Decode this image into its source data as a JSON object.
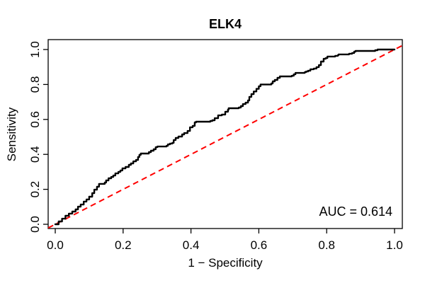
{
  "chart": {
    "title": "ELK4",
    "x_label": "1 − Specificity",
    "y_label": "Sensitivity",
    "auc_label": "AUC = 0.614",
    "x_ticks": [
      "0.0",
      "0.2",
      "0.4",
      "0.6",
      "0.8",
      "1.0"
    ],
    "y_ticks": [
      "0.0",
      "0.2",
      "0.4",
      "0.6",
      "0.8",
      "1.0"
    ]
  },
  "colors": {
    "curve": "#000000",
    "reference_line": "#FF0000",
    "axis": "#000000",
    "background": "#FFFFFF"
  },
  "chart_data": {
    "type": "line",
    "title": "ELK4",
    "xlabel": "1 − Specificity",
    "ylabel": "Sensitivity",
    "xlim": [
      0,
      1
    ],
    "ylim": [
      0,
      1
    ],
    "grid": false,
    "legend": "none",
    "annotations": [
      {
        "text": "AUC = 0.614",
        "position": "bottom-right",
        "value": 0.614
      }
    ],
    "series": [
      {
        "name": "ROC curve",
        "style": "step",
        "color": "#000000",
        "linewidth": 2,
        "points": [
          [
            0.0,
            0.0
          ],
          [
            0.01,
            0.016
          ],
          [
            0.02,
            0.032
          ],
          [
            0.03,
            0.049
          ],
          [
            0.04,
            0.061
          ],
          [
            0.05,
            0.073
          ],
          [
            0.06,
            0.085
          ],
          [
            0.067,
            0.101
          ],
          [
            0.075,
            0.113
          ],
          [
            0.084,
            0.13
          ],
          [
            0.092,
            0.142
          ],
          [
            0.1,
            0.158
          ],
          [
            0.109,
            0.178
          ],
          [
            0.115,
            0.198
          ],
          [
            0.123,
            0.215
          ],
          [
            0.129,
            0.231
          ],
          [
            0.146,
            0.239
          ],
          [
            0.15,
            0.251
          ],
          [
            0.157,
            0.263
          ],
          [
            0.165,
            0.271
          ],
          [
            0.171,
            0.279
          ],
          [
            0.177,
            0.291
          ],
          [
            0.186,
            0.3
          ],
          [
            0.192,
            0.308
          ],
          [
            0.198,
            0.32
          ],
          [
            0.207,
            0.328
          ],
          [
            0.217,
            0.34
          ],
          [
            0.223,
            0.348
          ],
          [
            0.23,
            0.36
          ],
          [
            0.238,
            0.368
          ],
          [
            0.244,
            0.385
          ],
          [
            0.248,
            0.397
          ],
          [
            0.252,
            0.405
          ],
          [
            0.276,
            0.413
          ],
          [
            0.282,
            0.421
          ],
          [
            0.29,
            0.429
          ],
          [
            0.296,
            0.441
          ],
          [
            0.301,
            0.445
          ],
          [
            0.328,
            0.449
          ],
          [
            0.332,
            0.457
          ],
          [
            0.338,
            0.462
          ],
          [
            0.345,
            0.466
          ],
          [
            0.349,
            0.482
          ],
          [
            0.355,
            0.494
          ],
          [
            0.363,
            0.502
          ],
          [
            0.374,
            0.514
          ],
          [
            0.38,
            0.522
          ],
          [
            0.39,
            0.534
          ],
          [
            0.397,
            0.555
          ],
          [
            0.405,
            0.563
          ],
          [
            0.411,
            0.583
          ],
          [
            0.415,
            0.587
          ],
          [
            0.457,
            0.591
          ],
          [
            0.463,
            0.595
          ],
          [
            0.47,
            0.607
          ],
          [
            0.48,
            0.623
          ],
          [
            0.491,
            0.628
          ],
          [
            0.501,
            0.644
          ],
          [
            0.509,
            0.656
          ],
          [
            0.511,
            0.664
          ],
          [
            0.541,
            0.668
          ],
          [
            0.547,
            0.676
          ],
          [
            0.553,
            0.688
          ],
          [
            0.561,
            0.696
          ],
          [
            0.568,
            0.709
          ],
          [
            0.572,
            0.729
          ],
          [
            0.578,
            0.745
          ],
          [
            0.585,
            0.76
          ],
          [
            0.593,
            0.775
          ],
          [
            0.6,
            0.79
          ],
          [
            0.605,
            0.8
          ],
          [
            0.637,
            0.806
          ],
          [
            0.641,
            0.818
          ],
          [
            0.647,
            0.826
          ],
          [
            0.655,
            0.838
          ],
          [
            0.662,
            0.846
          ],
          [
            0.697,
            0.85
          ],
          [
            0.703,
            0.858
          ],
          [
            0.708,
            0.866
          ],
          [
            0.735,
            0.87
          ],
          [
            0.739,
            0.874
          ],
          [
            0.745,
            0.879
          ],
          [
            0.752,
            0.887
          ],
          [
            0.762,
            0.891
          ],
          [
            0.77,
            0.899
          ],
          [
            0.777,
            0.911
          ],
          [
            0.783,
            0.931
          ],
          [
            0.791,
            0.947
          ],
          [
            0.797,
            0.951
          ],
          [
            0.802,
            0.96
          ],
          [
            0.825,
            0.964
          ],
          [
            0.833,
            0.968
          ],
          [
            0.835,
            0.972
          ],
          [
            0.866,
            0.976
          ],
          [
            0.875,
            0.98
          ],
          [
            0.881,
            0.988
          ],
          [
            0.885,
            0.992
          ],
          [
            0.943,
            0.996
          ],
          [
            0.95,
            1.0
          ],
          [
            1.0,
            1.0
          ]
        ]
      },
      {
        "name": "Reference diagonal",
        "style": "dashed",
        "color": "#FF0000",
        "linewidth": 2,
        "points": [
          [
            0,
            0
          ],
          [
            1,
            1
          ]
        ]
      }
    ]
  }
}
